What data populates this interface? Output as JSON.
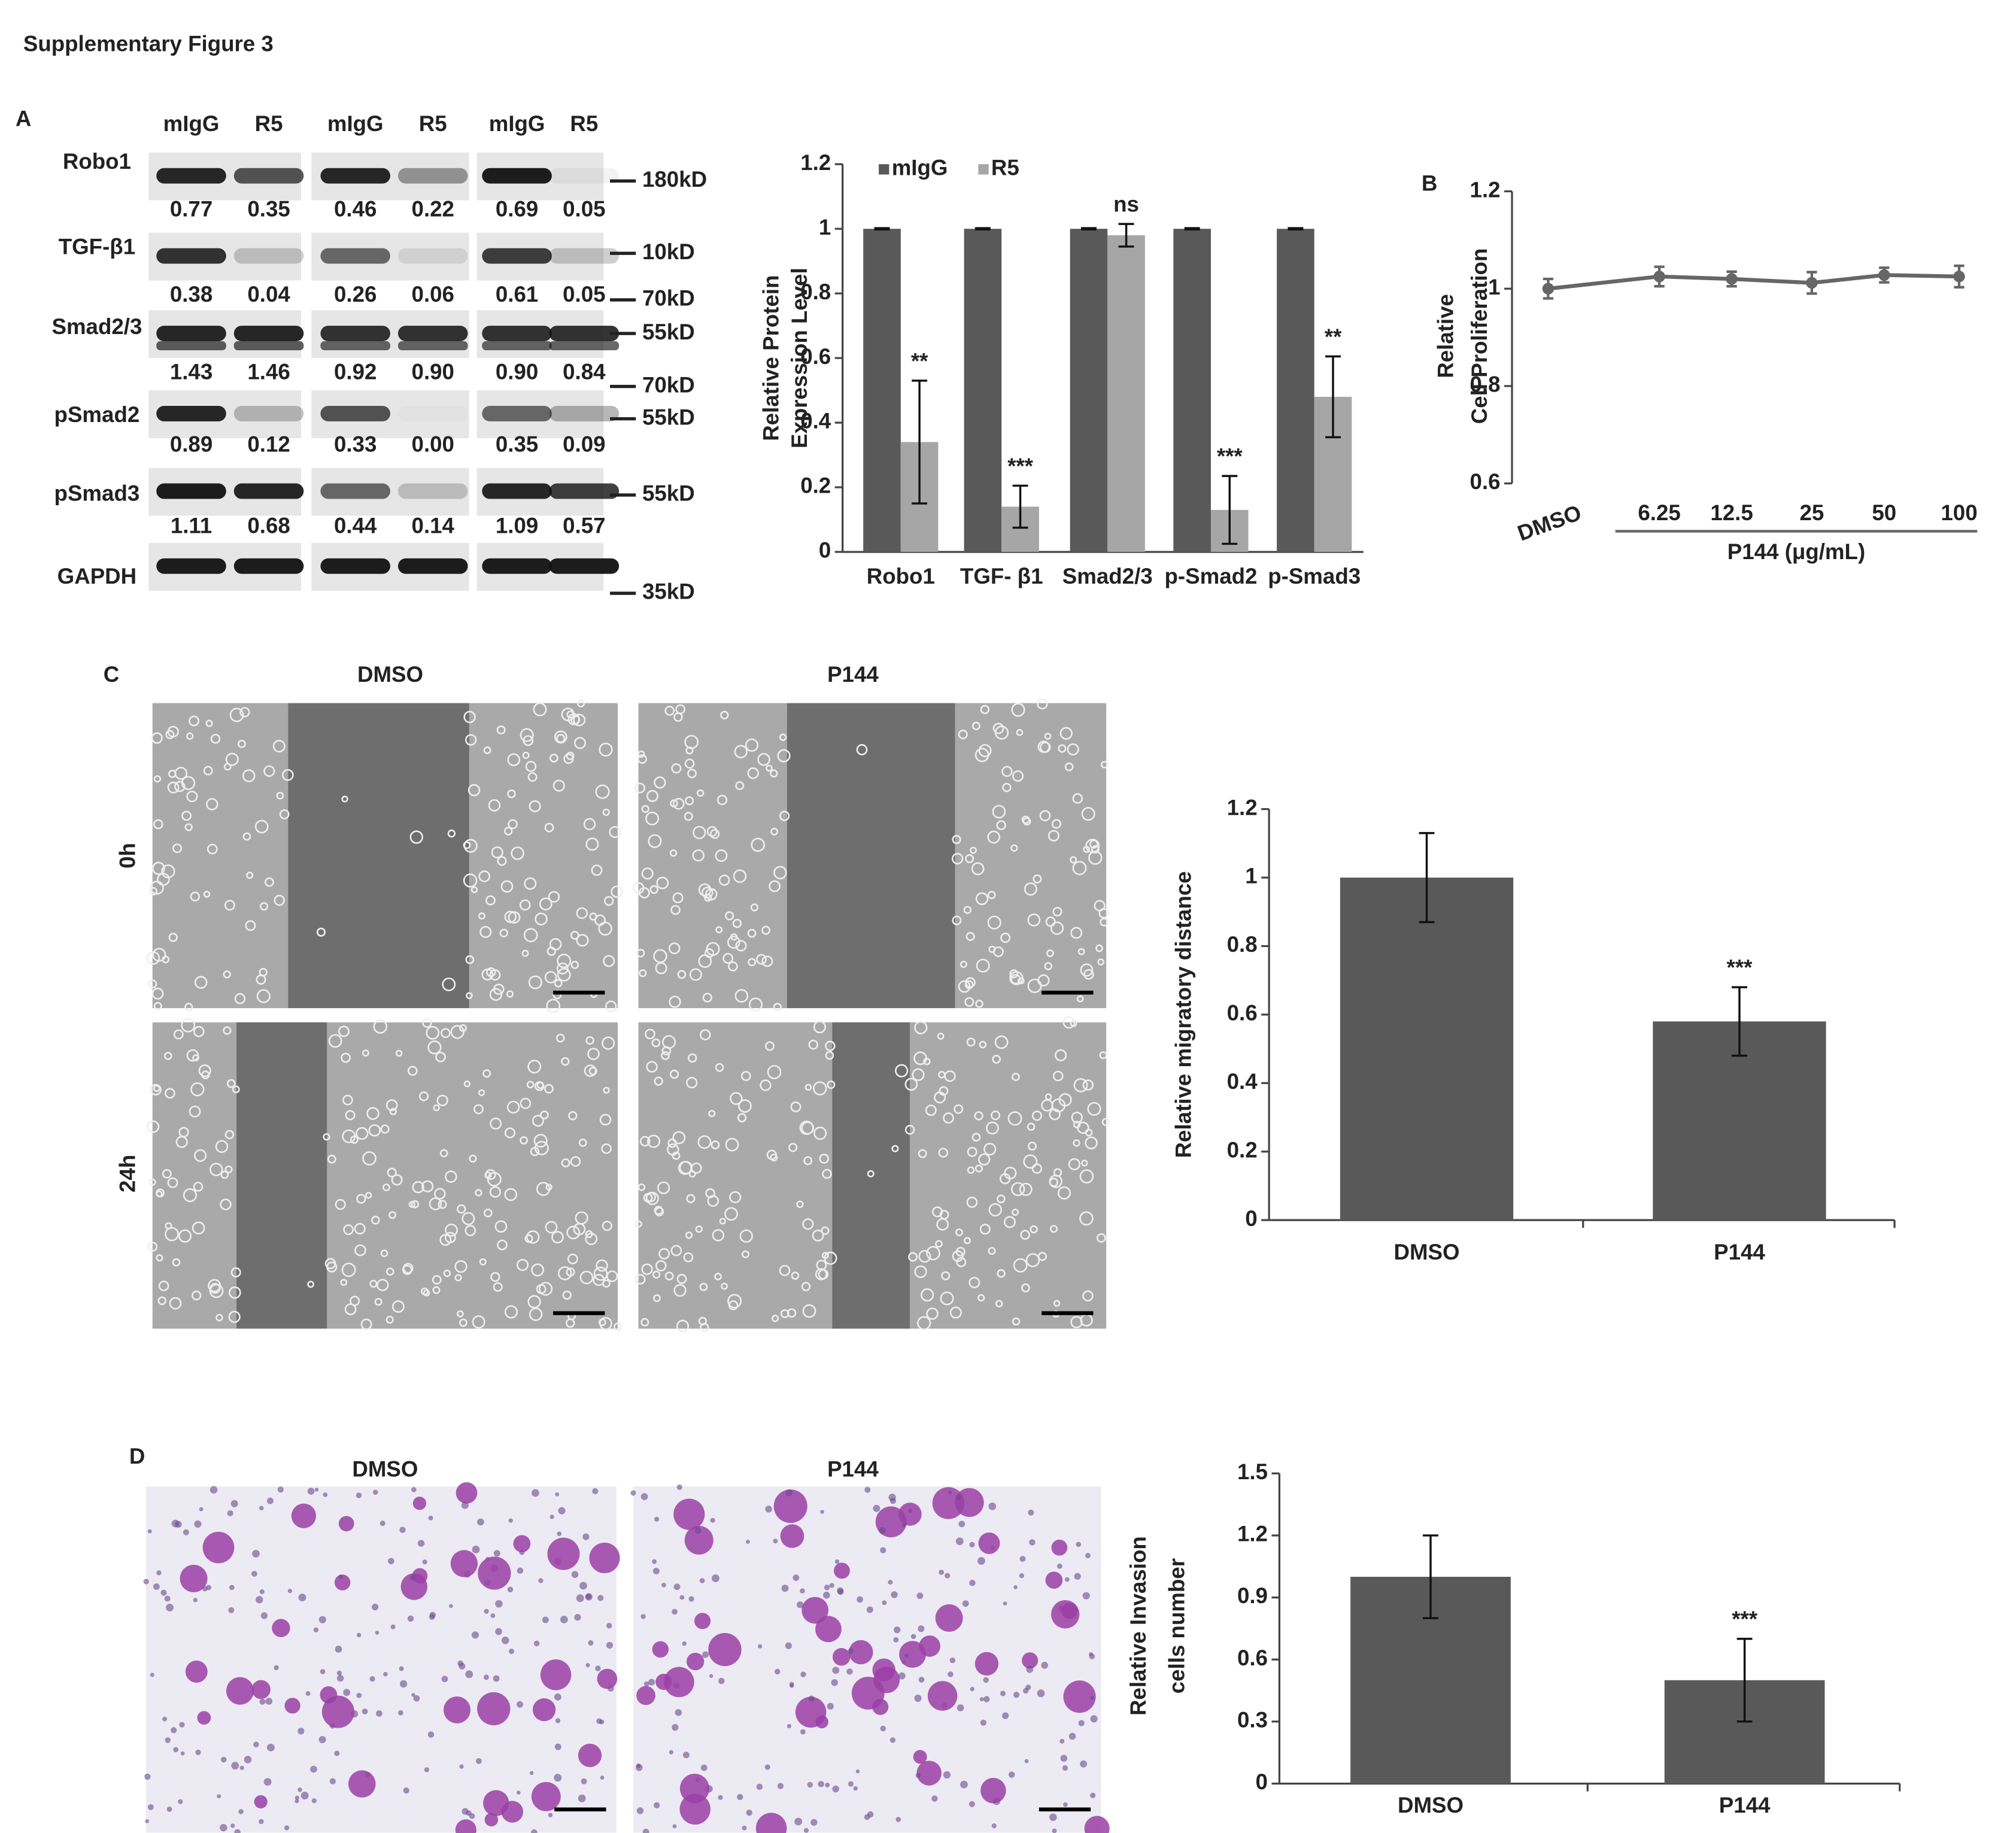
{
  "title": "Supplementary Figure 3",
  "panel_labels": [
    "A",
    "B",
    "C",
    "D"
  ],
  "blot": {
    "lane_labels": [
      "mIgG",
      "R5",
      "mIgG",
      "R5",
      "mIgG",
      "R5"
    ],
    "rows": [
      {
        "label": "Robo1",
        "values": [
          "0.77",
          "0.35",
          "0.46",
          "0.22",
          "0.69",
          "0.05"
        ]
      },
      {
        "label": "TGF-β1",
        "values": [
          "0.38",
          "0.04",
          "0.26",
          "0.06",
          "0.61",
          "0.05"
        ]
      },
      {
        "label": "Smad2/3",
        "values": [
          "1.43",
          "1.46",
          "0.92",
          "0.90",
          "0.90",
          "0.84"
        ]
      },
      {
        "label": "pSmad2",
        "values": [
          "0.89",
          "0.12",
          "0.33",
          "0.00",
          "0.35",
          "0.09"
        ]
      },
      {
        "label": "pSmad3",
        "values": [
          "1.11",
          "0.68",
          "0.44",
          "0.14",
          "1.09",
          "0.57"
        ]
      },
      {
        "label": "GAPDH"
      }
    ],
    "markers": [
      "180kD",
      "10kD",
      "70kD",
      "55kD",
      "70kD",
      "55kD",
      "55kD",
      "35kD"
    ]
  },
  "migration": {
    "columns": [
      "DMSO",
      "P144"
    ],
    "rows": [
      "0h",
      "24h"
    ]
  },
  "invasion": {
    "columns": [
      "DMSO",
      "P144"
    ]
  },
  "chart_data": [
    {
      "type": "bar",
      "ylabel": [
        "Relative Protein",
        "Expression Level"
      ],
      "categories": [
        "Robo1",
        "TGF- β1",
        "Smad2/3",
        "p-Smad2",
        "p-Smad3"
      ],
      "series": [
        {
          "name": "mIgG",
          "color": "#595959",
          "values": [
            1,
            1,
            1,
            1,
            1
          ],
          "errors": [
            0.002,
            0.002,
            0.002,
            0.002,
            0.002
          ]
        },
        {
          "name": "R5",
          "color": "#a6a6a6",
          "values": [
            0.34,
            0.14,
            0.98,
            0.13,
            0.48
          ],
          "errors": [
            0.19,
            0.065,
            0.035,
            0.105,
            0.125
          ]
        }
      ],
      "annotations": [
        "**",
        "***",
        "ns",
        "***",
        "**"
      ],
      "ylim": [
        0,
        1.2
      ],
      "yticks": [
        0,
        0.2,
        0.4,
        0.6,
        0.8,
        1,
        1.2
      ],
      "legend": "top-left"
    },
    {
      "type": "line",
      "ylabel": [
        "Relative",
        "Cell Proliferation"
      ],
      "xlabel": "P144 (μg/mL)",
      "categories": [
        "DMSO",
        "6.25",
        "12.5",
        "25",
        "50",
        "100"
      ],
      "values": [
        1.0,
        1.025,
        1.02,
        1.012,
        1.028,
        1.025
      ],
      "errors": [
        0.02,
        0.02,
        0.015,
        0.022,
        0.015,
        0.022
      ],
      "color": "#666666",
      "ylim": [
        0.6,
        1.2
      ],
      "yticks": [
        0.6,
        0.8,
        1,
        1.2
      ]
    },
    {
      "type": "bar",
      "ylabel": [
        "Relative migratory distance"
      ],
      "categories": [
        "DMSO",
        "P144"
      ],
      "values": [
        1.0,
        0.58
      ],
      "errors": [
        0.13,
        0.1
      ],
      "annotations": [
        null,
        "***"
      ],
      "color": "#595959",
      "ylim": [
        0,
        1.2
      ],
      "yticks": [
        0,
        0.2,
        0.4,
        0.6,
        0.8,
        1,
        1.2
      ]
    },
    {
      "type": "bar",
      "ylabel": [
        "Relative Invasion",
        "cells number"
      ],
      "categories": [
        "DMSO",
        "P144"
      ],
      "values": [
        1.0,
        0.5
      ],
      "errors": [
        0.2,
        0.2
      ],
      "annotations": [
        null,
        "***"
      ],
      "color": "#595959",
      "ylim": [
        0,
        1.5
      ],
      "yticks": [
        0,
        0.3,
        0.6,
        0.9,
        1.2,
        1.5
      ]
    }
  ]
}
